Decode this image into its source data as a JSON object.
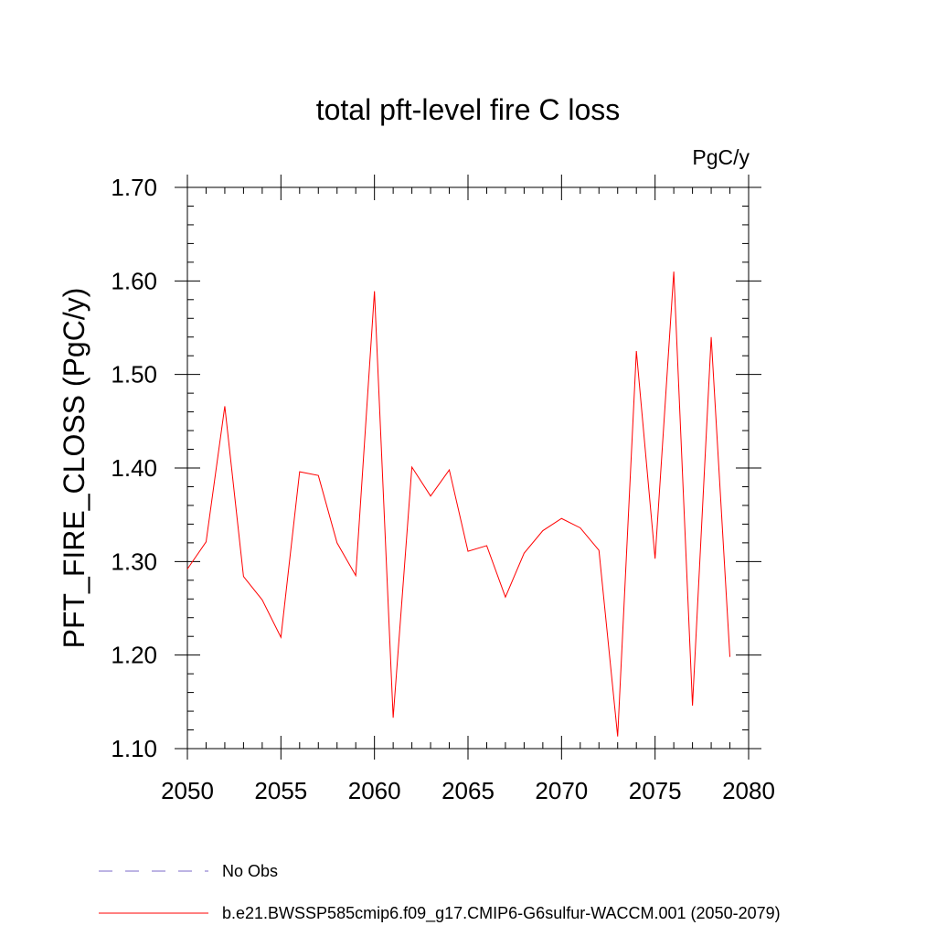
{
  "chart_data": {
    "type": "line",
    "title": "total pft-level fire C loss",
    "units_label": "PgC/y",
    "xlabel": "",
    "ylabel": "PFT_FIRE_CLOSS  (PgC/y)",
    "xlim": [
      2050,
      2080
    ],
    "ylim": [
      1.1,
      1.7
    ],
    "x_ticks": [
      2050,
      2055,
      2060,
      2065,
      2070,
      2075,
      2080
    ],
    "x_tick_labels": [
      "2050",
      "2055",
      "2060",
      "2065",
      "2070",
      "2075",
      "2080"
    ],
    "y_ticks": [
      1.1,
      1.2,
      1.3,
      1.4,
      1.5,
      1.6,
      1.7
    ],
    "y_tick_labels": [
      "1.10",
      "1.20",
      "1.30",
      "1.40",
      "1.50",
      "1.60",
      "1.70"
    ],
    "grid": false,
    "legend_position": "bottom",
    "series": [
      {
        "name": "No Obs",
        "color": "#7b68c8",
        "style": "dashed",
        "x": [],
        "values": []
      },
      {
        "name": "b.e21.BWSSP585cmip6.f09_g17.CMIP6-G6sulfur-WACCM.001 (2050-2079)",
        "color": "#ff0000",
        "style": "solid",
        "x": [
          2050,
          2051,
          2052,
          2053,
          2054,
          2055,
          2056,
          2057,
          2058,
          2059,
          2060,
          2061,
          2062,
          2063,
          2064,
          2065,
          2066,
          2067,
          2068,
          2069,
          2070,
          2071,
          2072,
          2073,
          2074,
          2075,
          2076,
          2077,
          2078,
          2079
        ],
        "values": [
          1.292,
          1.321,
          1.466,
          1.284,
          1.259,
          1.219,
          1.396,
          1.392,
          1.32,
          1.285,
          1.589,
          1.133,
          1.401,
          1.37,
          1.398,
          1.311,
          1.317,
          1.262,
          1.309,
          1.333,
          1.346,
          1.336,
          1.312,
          1.113,
          1.525,
          1.303,
          1.61,
          1.146,
          1.54,
          1.198
        ]
      }
    ]
  }
}
